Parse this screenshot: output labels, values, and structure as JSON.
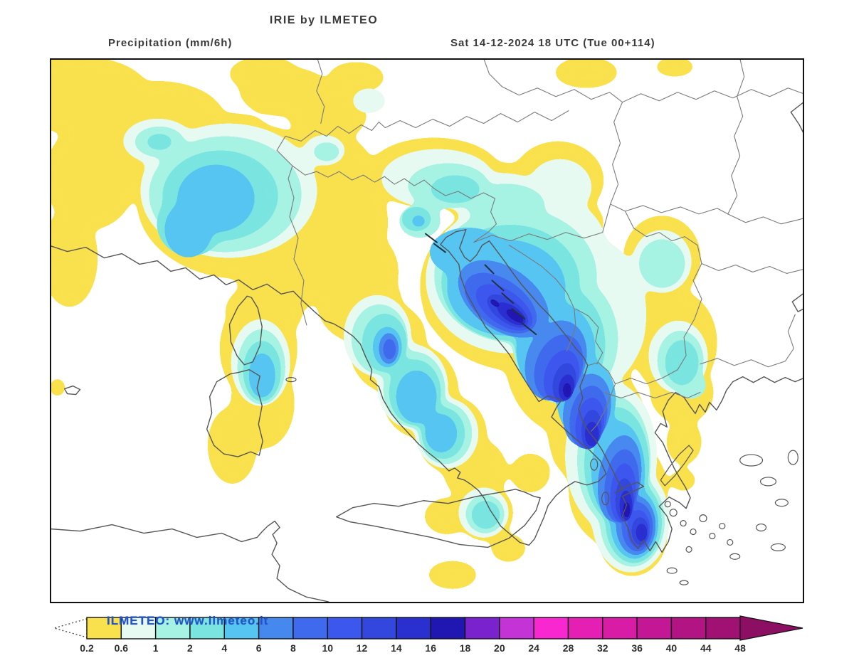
{
  "header": {
    "title": "IRIE by ILMETEO",
    "subtitle_left": "Precipitation (mm/6h)",
    "subtitle_right": "Sat 14-12-2024 18 UTC (Tue 00+114)"
  },
  "watermark": "ILMETEO: www.ilmeteo.it",
  "colorbar": {
    "levels": [
      "0.2",
      "0.6",
      "1",
      "2",
      "4",
      "6",
      "8",
      "10",
      "12",
      "14",
      "16",
      "18",
      "20",
      "24",
      "28",
      "32",
      "36",
      "40",
      "44",
      "48"
    ],
    "colors": [
      "#f9e14e",
      "#e6faf2",
      "#a6f2e3",
      "#7ae5e0",
      "#57c5f1",
      "#4689ee",
      "#3f6aee",
      "#3c57ee",
      "#3346de",
      "#2a2fd0",
      "#2017b2",
      "#7b22cf",
      "#c433d6",
      "#f827cf",
      "#e51fb4",
      "#d81ca6",
      "#c41795",
      "#b21483",
      "#a11173"
    ],
    "overflow_arrow_color": "#8d0f63",
    "underflow_arrow_color": "#ffffff",
    "label_color": "#2e2e2e"
  },
  "map": {
    "coastline_color": "#555555",
    "border_color": "#7a7a7a",
    "island_mark_color": "#22313f",
    "background_color": "#ffffff"
  }
}
